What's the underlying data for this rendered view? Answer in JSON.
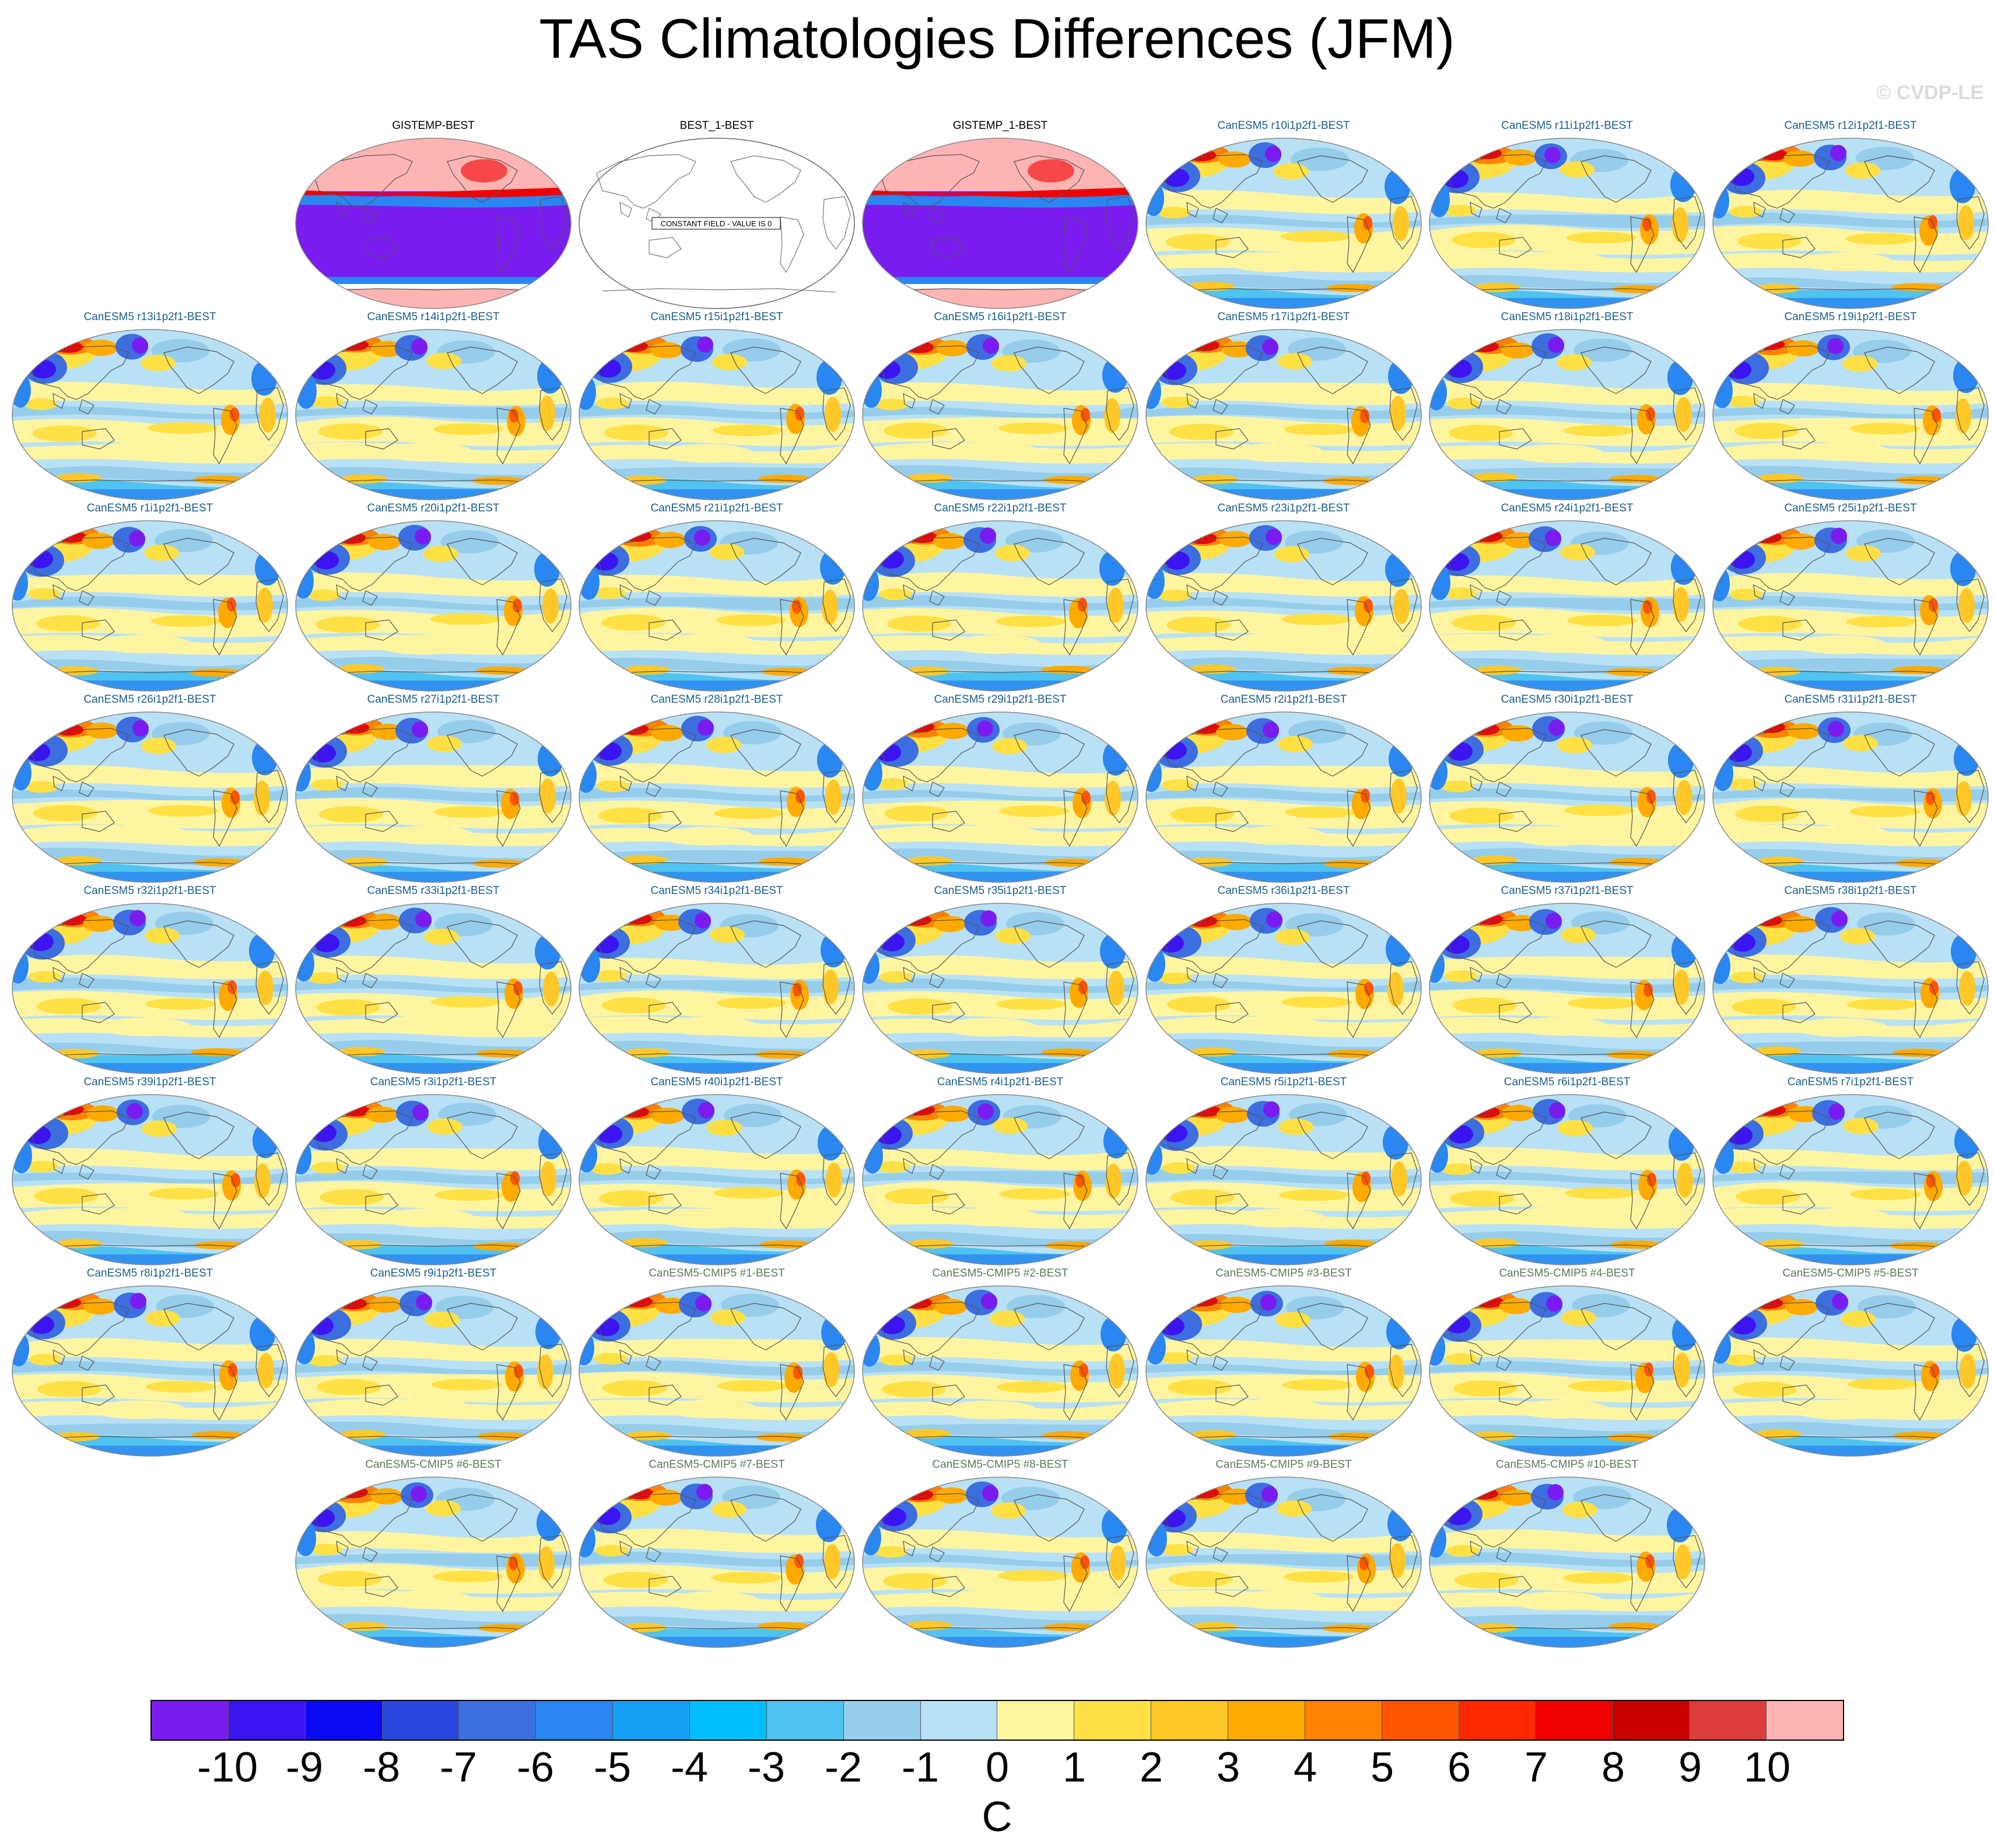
{
  "title": "TAS Climatologies Differences (JFM)",
  "copyright": "© CVDP-LE",
  "units": "C",
  "colorbar": {
    "colors": [
      "#7a1cf0",
      "#3c14f0",
      "#0a0af5",
      "#2a46dc",
      "#3c6ee0",
      "#2a86f0",
      "#14a0f5",
      "#00befa",
      "#50c3f0",
      "#96cdeb",
      "#b9e1f5",
      "#fff5a0",
      "#ffe146",
      "#ffc828",
      "#ffaa00",
      "#ff8200",
      "#ff5500",
      "#ff2800",
      "#f00000",
      "#c80000",
      "#dc3c3c",
      "#ffb4b4"
    ],
    "labels": [
      "-10",
      "-9",
      "-8",
      "-7",
      "-6",
      "-5",
      "-4",
      "-3",
      "-2",
      "-1",
      "0",
      "1",
      "2",
      "3",
      "4",
      "5",
      "6",
      "7",
      "8",
      "9",
      "10"
    ]
  },
  "panels": [
    {
      "title": "GISTEMP-BEST",
      "group": "obs",
      "pattern": "gistemp"
    },
    {
      "title": "BEST_1-BEST",
      "group": "obs",
      "pattern": "constant",
      "constant_label": "CONSTANT FIELD - VALUE IS 0"
    },
    {
      "title": "GISTEMP_1-BEST",
      "group": "obs",
      "pattern": "gistemp"
    },
    {
      "title": "CanESM5 r10i1p2f1-BEST",
      "group": "model"
    },
    {
      "title": "CanESM5 r11i1p2f1-BEST",
      "group": "model"
    },
    {
      "title": "CanESM5 r12i1p2f1-BEST",
      "group": "model"
    },
    {
      "title": "CanESM5 r13i1p2f1-BEST",
      "group": "model"
    },
    {
      "title": "CanESM5 r14i1p2f1-BEST",
      "group": "model"
    },
    {
      "title": "CanESM5 r15i1p2f1-BEST",
      "group": "model"
    },
    {
      "title": "CanESM5 r16i1p2f1-BEST",
      "group": "model"
    },
    {
      "title": "CanESM5 r17i1p2f1-BEST",
      "group": "model"
    },
    {
      "title": "CanESM5 r18i1p2f1-BEST",
      "group": "model"
    },
    {
      "title": "CanESM5 r19i1p2f1-BEST",
      "group": "model"
    },
    {
      "title": "CanESM5 r1i1p2f1-BEST",
      "group": "model"
    },
    {
      "title": "CanESM5 r20i1p2f1-BEST",
      "group": "model"
    },
    {
      "title": "CanESM5 r21i1p2f1-BEST",
      "group": "model"
    },
    {
      "title": "CanESM5 r22i1p2f1-BEST",
      "group": "model"
    },
    {
      "title": "CanESM5 r23i1p2f1-BEST",
      "group": "model"
    },
    {
      "title": "CanESM5 r24i1p2f1-BEST",
      "group": "model"
    },
    {
      "title": "CanESM5 r25i1p2f1-BEST",
      "group": "model"
    },
    {
      "title": "CanESM5 r26i1p2f1-BEST",
      "group": "model"
    },
    {
      "title": "CanESM5 r27i1p2f1-BEST",
      "group": "model"
    },
    {
      "title": "CanESM5 r28i1p2f1-BEST",
      "group": "model"
    },
    {
      "title": "CanESM5 r29i1p2f1-BEST",
      "group": "model"
    },
    {
      "title": "CanESM5 r2i1p2f1-BEST",
      "group": "model"
    },
    {
      "title": "CanESM5 r30i1p2f1-BEST",
      "group": "model"
    },
    {
      "title": "CanESM5 r31i1p2f1-BEST",
      "group": "model"
    },
    {
      "title": "CanESM5 r32i1p2f1-BEST",
      "group": "model"
    },
    {
      "title": "CanESM5 r33i1p2f1-BEST",
      "group": "model"
    },
    {
      "title": "CanESM5 r34i1p2f1-BEST",
      "group": "model"
    },
    {
      "title": "CanESM5 r35i1p2f1-BEST",
      "group": "model"
    },
    {
      "title": "CanESM5 r36i1p2f1-BEST",
      "group": "model"
    },
    {
      "title": "CanESM5 r37i1p2f1-BEST",
      "group": "model"
    },
    {
      "title": "CanESM5 r38i1p2f1-BEST",
      "group": "model"
    },
    {
      "title": "CanESM5 r39i1p2f1-BEST",
      "group": "model"
    },
    {
      "title": "CanESM5 r3i1p2f1-BEST",
      "group": "model"
    },
    {
      "title": "CanESM5 r40i1p2f1-BEST",
      "group": "model"
    },
    {
      "title": "CanESM5 r4i1p2f1-BEST",
      "group": "model"
    },
    {
      "title": "CanESM5 r5i1p2f1-BEST",
      "group": "model"
    },
    {
      "title": "CanESM5 r6i1p2f1-BEST",
      "group": "model"
    },
    {
      "title": "CanESM5 r7i1p2f1-BEST",
      "group": "model"
    },
    {
      "title": "CanESM5 r8i1p2f1-BEST",
      "group": "model"
    },
    {
      "title": "CanESM5 r9i1p2f1-BEST",
      "group": "model"
    },
    {
      "title": "CanESM5-CMIP5 #1-BEST",
      "group": "cmip5"
    },
    {
      "title": "CanESM5-CMIP5 #2-BEST",
      "group": "cmip5"
    },
    {
      "title": "CanESM5-CMIP5 #3-BEST",
      "group": "cmip5"
    },
    {
      "title": "CanESM5-CMIP5 #4-BEST",
      "group": "cmip5"
    },
    {
      "title": "CanESM5-CMIP5 #5-BEST",
      "group": "cmip5"
    },
    {
      "title": "CanESM5-CMIP5 #6-BEST",
      "group": "cmip5"
    },
    {
      "title": "CanESM5-CMIP5 #7-BEST",
      "group": "cmip5"
    },
    {
      "title": "CanESM5-CMIP5 #8-BEST",
      "group": "cmip5"
    },
    {
      "title": "CanESM5-CMIP5 #9-BEST",
      "group": "cmip5"
    },
    {
      "title": "CanESM5-CMIP5 #10-BEST",
      "group": "cmip5"
    }
  ],
  "title_colors": {
    "obs": "#000000",
    "model": "#1a5f8c",
    "cmip5": "#5a7a5a"
  }
}
